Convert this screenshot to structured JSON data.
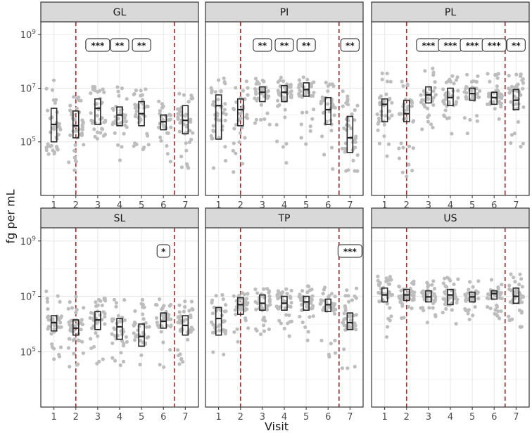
{
  "chart_data": {
    "type": "box-jitter-facets",
    "xlabel": "Visit",
    "ylabel": "fg per mL",
    "y_scale": "log10",
    "ylim": [
      1000,
      3000000000
    ],
    "y_ticks": [
      {
        "exponent": 5,
        "base": "10",
        "sup": "5"
      },
      {
        "exponent": 7,
        "base": "10",
        "sup": "7"
      },
      {
        "exponent": 9,
        "base": "10",
        "sup": "9"
      }
    ],
    "x_categories": [
      "1",
      "2",
      "3",
      "4",
      "5",
      "6",
      "7"
    ],
    "colors": {
      "strip_fill": "#d9d9d9",
      "panel_border": "#333333",
      "grid": "#ebebeb",
      "point": "#bdbdbd",
      "box_stroke": "#262626",
      "vline": "#a52a2a"
    },
    "panels": [
      {
        "name": "GL",
        "vlines": [
          2,
          6.5
        ],
        "boxes": [
          {
            "visit": 1,
            "q1": 5.0,
            "median": 5.65,
            "q3": 6.25,
            "n": 36,
            "lo": 4.45,
            "hi": 7.3,
            "sig": ""
          },
          {
            "visit": 2,
            "q1": 5.15,
            "median": 5.6,
            "q3": 6.15,
            "n": 40,
            "lo": 3.9,
            "hi": 6.9,
            "sig": ""
          },
          {
            "visit": 3,
            "q1": 5.65,
            "median": 6.25,
            "q3": 6.6,
            "n": 38,
            "lo": 4.75,
            "hi": 7.1,
            "sig": "***"
          },
          {
            "visit": 4,
            "q1": 5.6,
            "median": 6.0,
            "q3": 6.3,
            "n": 34,
            "lo": 4.2,
            "hi": 7.15,
            "sig": "**"
          },
          {
            "visit": 5,
            "q1": 5.6,
            "median": 6.05,
            "q3": 6.5,
            "n": 36,
            "lo": 4.7,
            "hi": 7.0,
            "sig": "**"
          },
          {
            "visit": 6,
            "q1": 5.45,
            "median": 5.75,
            "q3": 6.0,
            "n": 30,
            "lo": 4.25,
            "hi": 6.7,
            "sig": ""
          },
          {
            "visit": 7,
            "q1": 5.3,
            "median": 5.8,
            "q3": 6.35,
            "n": 40,
            "lo": 3.95,
            "hi": 6.85,
            "sig": ""
          }
        ]
      },
      {
        "name": "PI",
        "vlines": [
          2,
          6.5
        ],
        "boxes": [
          {
            "visit": 1,
            "q1": 5.1,
            "median": 6.35,
            "q3": 6.75,
            "n": 40,
            "lo": 3.75,
            "hi": 7.4,
            "sig": ""
          },
          {
            "visit": 2,
            "q1": 5.6,
            "median": 6.2,
            "q3": 6.6,
            "n": 34,
            "lo": 3.85,
            "hi": 7.3,
            "sig": ""
          },
          {
            "visit": 3,
            "q1": 6.5,
            "median": 6.85,
            "q3": 7.05,
            "n": 38,
            "lo": 5.3,
            "hi": 7.5,
            "sig": "**"
          },
          {
            "visit": 4,
            "q1": 6.5,
            "median": 6.85,
            "q3": 7.1,
            "n": 40,
            "lo": 4.2,
            "hi": 7.5,
            "sig": "**"
          },
          {
            "visit": 5,
            "q1": 6.7,
            "median": 6.95,
            "q3": 7.2,
            "n": 38,
            "lo": 4.85,
            "hi": 7.5,
            "sig": "**"
          },
          {
            "visit": 6,
            "q1": 5.65,
            "median": 6.2,
            "q3": 6.65,
            "n": 36,
            "lo": 3.65,
            "hi": 7.3,
            "sig": ""
          },
          {
            "visit": 7,
            "q1": 4.6,
            "median": 5.15,
            "q3": 5.95,
            "n": 40,
            "lo": 3.6,
            "hi": 7.0,
            "sig": "**"
          }
        ]
      },
      {
        "name": "PL",
        "vlines": [
          2,
          6.5
        ],
        "boxes": [
          {
            "visit": 1,
            "q1": 5.75,
            "median": 6.4,
            "q3": 6.6,
            "n": 34,
            "lo": 4.3,
            "hi": 7.6,
            "sig": ""
          },
          {
            "visit": 2,
            "q1": 5.75,
            "median": 6.05,
            "q3": 6.55,
            "n": 36,
            "lo": 3.65,
            "hi": 7.3,
            "sig": ""
          },
          {
            "visit": 3,
            "q1": 6.45,
            "median": 6.75,
            "q3": 7.05,
            "n": 36,
            "lo": 5.45,
            "hi": 7.75,
            "sig": "***"
          },
          {
            "visit": 4,
            "q1": 6.35,
            "median": 6.65,
            "q3": 7.0,
            "n": 36,
            "lo": 5.0,
            "hi": 7.5,
            "sig": "***"
          },
          {
            "visit": 5,
            "q1": 6.55,
            "median": 6.8,
            "q3": 7.0,
            "n": 36,
            "lo": 5.15,
            "hi": 7.6,
            "sig": "***"
          },
          {
            "visit": 6,
            "q1": 6.4,
            "median": 6.65,
            "q3": 6.85,
            "n": 36,
            "lo": 5.45,
            "hi": 7.55,
            "sig": "***"
          },
          {
            "visit": 7,
            "q1": 6.2,
            "median": 6.55,
            "q3": 6.95,
            "n": 38,
            "lo": 4.8,
            "hi": 7.6,
            "sig": "**"
          }
        ]
      },
      {
        "name": "SL",
        "vlines": [
          2,
          6.5
        ],
        "boxes": [
          {
            "visit": 1,
            "q1": 5.75,
            "median": 6.05,
            "q3": 6.3,
            "n": 36,
            "lo": 4.6,
            "hi": 7.2,
            "sig": ""
          },
          {
            "visit": 2,
            "q1": 5.6,
            "median": 5.85,
            "q3": 6.15,
            "n": 40,
            "lo": 4.3,
            "hi": 7.0,
            "sig": ""
          },
          {
            "visit": 3,
            "q1": 5.8,
            "median": 6.15,
            "q3": 6.45,
            "n": 38,
            "lo": 4.45,
            "hi": 6.95,
            "sig": ""
          },
          {
            "visit": 4,
            "q1": 5.45,
            "median": 5.9,
            "q3": 6.2,
            "n": 36,
            "lo": 4.4,
            "hi": 6.9,
            "sig": ""
          },
          {
            "visit": 5,
            "q1": 5.2,
            "median": 5.55,
            "q3": 6.0,
            "n": 34,
            "lo": 4.4,
            "hi": 6.9,
            "sig": ""
          },
          {
            "visit": 6,
            "q1": 5.85,
            "median": 6.1,
            "q3": 6.4,
            "n": 36,
            "lo": 4.4,
            "hi": 6.9,
            "sig": "*"
          },
          {
            "visit": 7,
            "q1": 5.6,
            "median": 5.95,
            "q3": 6.3,
            "n": 40,
            "lo": 4.5,
            "hi": 6.85,
            "sig": ""
          }
        ]
      },
      {
        "name": "TP",
        "vlines": [
          2,
          6.5
        ],
        "boxes": [
          {
            "visit": 1,
            "q1": 5.6,
            "median": 6.2,
            "q3": 6.6,
            "n": 34,
            "lo": 4.7,
            "hi": 7.1,
            "sig": ""
          },
          {
            "visit": 2,
            "q1": 6.35,
            "median": 6.7,
            "q3": 6.95,
            "n": 38,
            "lo": 5.3,
            "hi": 7.25,
            "sig": ""
          },
          {
            "visit": 3,
            "q1": 6.5,
            "median": 6.75,
            "q3": 7.05,
            "n": 40,
            "lo": 5.5,
            "hi": 7.35,
            "sig": ""
          },
          {
            "visit": 4,
            "q1": 6.5,
            "median": 6.75,
            "q3": 7.0,
            "n": 40,
            "lo": 5.5,
            "hi": 7.4,
            "sig": ""
          },
          {
            "visit": 5,
            "q1": 6.5,
            "median": 6.8,
            "q3": 7.0,
            "n": 38,
            "lo": 5.2,
            "hi": 7.4,
            "sig": ""
          },
          {
            "visit": 6,
            "q1": 6.45,
            "median": 6.7,
            "q3": 6.9,
            "n": 38,
            "lo": 4.8,
            "hi": 7.4,
            "sig": ""
          },
          {
            "visit": 7,
            "q1": 5.8,
            "median": 6.05,
            "q3": 6.4,
            "n": 40,
            "lo": 4.25,
            "hi": 7.3,
            "sig": "***"
          }
        ]
      },
      {
        "name": "US",
        "vlines": [
          2,
          6.5
        ],
        "boxes": [
          {
            "visit": 1,
            "q1": 6.8,
            "median": 7.05,
            "q3": 7.3,
            "n": 36,
            "lo": 5.5,
            "hi": 7.75,
            "sig": ""
          },
          {
            "visit": 2,
            "q1": 6.85,
            "median": 7.05,
            "q3": 7.25,
            "n": 40,
            "lo": 6.2,
            "hi": 7.6,
            "sig": ""
          },
          {
            "visit": 3,
            "q1": 6.8,
            "median": 6.98,
            "q3": 7.2,
            "n": 40,
            "lo": 6.0,
            "hi": 7.6,
            "sig": ""
          },
          {
            "visit": 4,
            "q1": 6.7,
            "median": 7.05,
            "q3": 7.25,
            "n": 40,
            "lo": 5.85,
            "hi": 7.7,
            "sig": ""
          },
          {
            "visit": 5,
            "q1": 6.8,
            "median": 6.98,
            "q3": 7.15,
            "n": 40,
            "lo": 6.1,
            "hi": 7.7,
            "sig": ""
          },
          {
            "visit": 6,
            "q1": 6.9,
            "median": 7.1,
            "q3": 7.2,
            "n": 40,
            "lo": 6.2,
            "hi": 7.65,
            "sig": ""
          },
          {
            "visit": 7,
            "q1": 6.75,
            "median": 7.0,
            "q3": 7.3,
            "n": 40,
            "lo": 5.85,
            "hi": 7.85,
            "sig": ""
          }
        ]
      }
    ]
  }
}
